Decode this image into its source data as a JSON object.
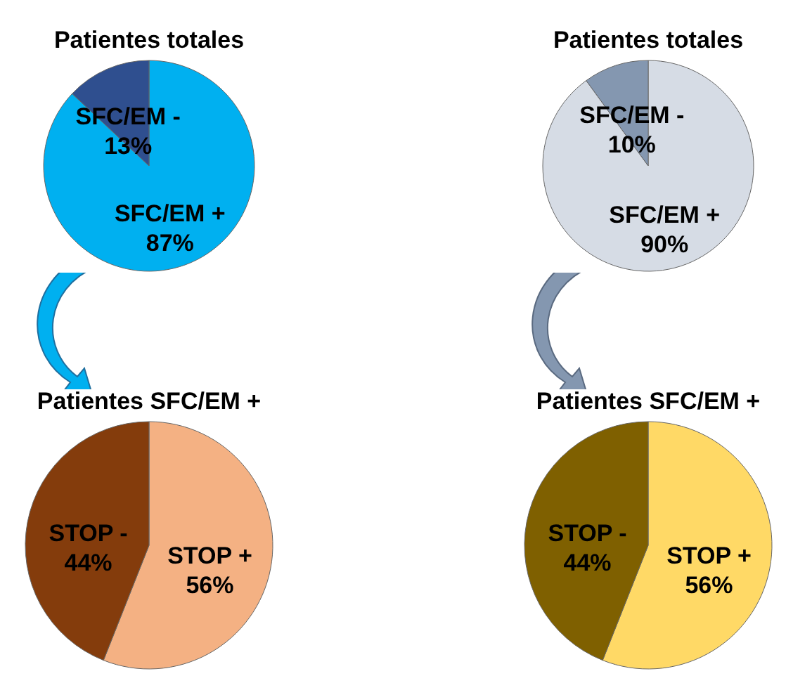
{
  "chart_data": [
    {
      "type": "pie",
      "title": "Patientes totales",
      "categories": [
        "SFC/EM +",
        "SFC/EM -"
      ],
      "values": [
        87,
        13
      ],
      "value_labels": [
        "87%",
        "13%"
      ],
      "colors": [
        "#00b0f0",
        "#2f4f8f"
      ],
      "legend": false
    },
    {
      "type": "pie",
      "title": "Patientes totales",
      "categories": [
        "SFC/EM +",
        "SFC/EM -"
      ],
      "values": [
        90,
        10
      ],
      "value_labels": [
        "90%",
        "10%"
      ],
      "colors": [
        "#d6dce5",
        "#8497b0"
      ],
      "legend": false
    },
    {
      "type": "pie",
      "title": "Patientes SFC/EM +",
      "categories": [
        "STOP +",
        "STOP -"
      ],
      "values": [
        56,
        44
      ],
      "value_labels": [
        "56%",
        "44%"
      ],
      "colors": [
        "#f4b183",
        "#843c0c"
      ],
      "legend": false
    },
    {
      "type": "pie",
      "title": "Patientes SFC/EM +",
      "categories": [
        "STOP +",
        "STOP -"
      ],
      "values": [
        56,
        44
      ],
      "value_labels": [
        "56%",
        "44%"
      ],
      "colors": [
        "#ffd966",
        "#7f6000"
      ],
      "legend": false
    }
  ]
}
